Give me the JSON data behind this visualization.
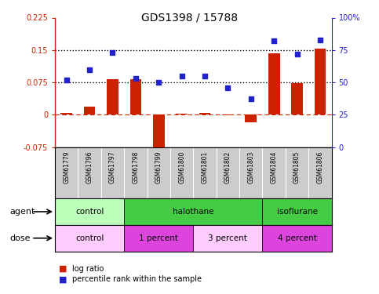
{
  "title": "GDS1398 / 15788",
  "samples": [
    "GSM61779",
    "GSM61796",
    "GSM61797",
    "GSM61798",
    "GSM61799",
    "GSM61800",
    "GSM61801",
    "GSM61802",
    "GSM61803",
    "GSM61804",
    "GSM61805",
    "GSM61806"
  ],
  "log_ratio": [
    0.005,
    0.018,
    0.082,
    0.082,
    -0.095,
    0.002,
    0.005,
    -0.002,
    -0.018,
    0.143,
    0.073,
    0.153
  ],
  "percentile_pct": [
    52,
    60,
    73,
    53,
    50,
    55,
    55,
    46,
    37,
    82,
    72,
    83
  ],
  "ylim_left": [
    -0.075,
    0.225
  ],
  "ylim_right": [
    0,
    100
  ],
  "yticks_left": [
    -0.075,
    0.0,
    0.075,
    0.15,
    0.225
  ],
  "yticks_right": [
    0,
    25,
    50,
    75,
    100
  ],
  "hline1": 0.075,
  "hline2": 0.15,
  "bar_color": "#cc2200",
  "dot_color": "#2222cc",
  "agent_groups": [
    {
      "label": "control",
      "start": 0,
      "end": 3,
      "color": "#bbffbb"
    },
    {
      "label": "halothane",
      "start": 3,
      "end": 9,
      "color": "#44cc44"
    },
    {
      "label": "isoflurane",
      "start": 9,
      "end": 12,
      "color": "#44cc44"
    }
  ],
  "dose_groups": [
    {
      "label": "control",
      "start": 0,
      "end": 3,
      "color": "#ffccff"
    },
    {
      "label": "1 percent",
      "start": 3,
      "end": 6,
      "color": "#dd44dd"
    },
    {
      "label": "3 percent",
      "start": 6,
      "end": 9,
      "color": "#ffccff"
    },
    {
      "label": "4 percent",
      "start": 9,
      "end": 12,
      "color": "#dd44dd"
    }
  ],
  "legend_bar_label": "log ratio",
  "legend_dot_label": "percentile rank within the sample",
  "agent_label": "agent",
  "dose_label": "dose",
  "bg_color": "#ffffff",
  "sample_bg": "#cccccc",
  "bar_width": 0.5
}
